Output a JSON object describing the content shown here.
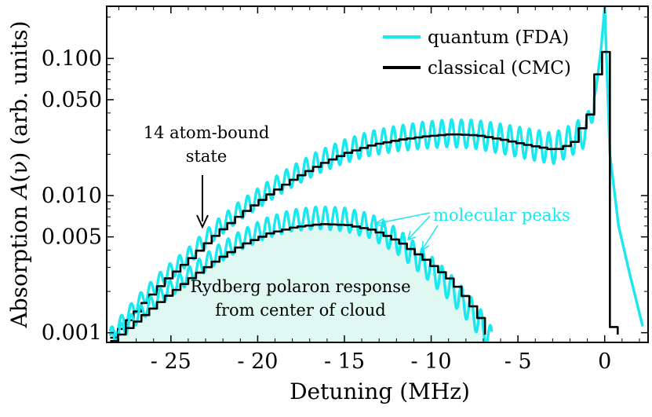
{
  "chart_data": {
    "type": "line",
    "title": "",
    "xlabel": "Detuning (MHz)",
    "ylabel_prefix": "Absorption ",
    "ylabel_symbol": "A",
    "ylabel_suffix": "(ν) (arb. units)",
    "xscale": "linear",
    "yscale": "log",
    "xlim": [
      -28.7,
      2.5
    ],
    "ylim": [
      0.00085,
      0.24
    ],
    "xticks": [
      -25,
      -20,
      -15,
      -10,
      -5,
      0
    ],
    "xtick_labels": [
      "- 25",
      "- 20",
      "- 15",
      "- 10",
      "- 5",
      "0"
    ],
    "yticks": [
      0.001,
      0.005,
      0.01,
      0.05,
      0.1
    ],
    "ytick_labels": [
      "0.001",
      "0.005",
      "0.010",
      "0.050",
      "0.100"
    ],
    "colors": {
      "quantum": "#19e8ee",
      "classical": "#000000",
      "fill": "#dff8f1",
      "annotation_cyan": "#19e8ee"
    },
    "series": [
      {
        "name": "quantum (FDA)",
        "component": "full-cloud",
        "x": [
          -28.5,
          -27,
          -25.5,
          -24,
          -22.5,
          -21,
          -19.5,
          -18,
          -16.5,
          -15,
          -13.5,
          -12,
          -10.5,
          -9,
          -7.5,
          -6,
          -4.5,
          -3,
          -2,
          -1,
          -0.5,
          -0.2,
          0,
          0.3,
          0.8,
          1.5,
          2.2
        ],
        "y": [
          0.00095,
          0.0016,
          0.0025,
          0.0036,
          0.0055,
          0.0078,
          0.0105,
          0.0138,
          0.0175,
          0.021,
          0.024,
          0.026,
          0.0275,
          0.0285,
          0.028,
          0.026,
          0.024,
          0.022,
          0.025,
          0.03,
          0.06,
          0.12,
          0.24,
          0.02,
          0.006,
          0.0025,
          0.0011
        ]
      },
      {
        "name": "classical (CMC)",
        "component": "full-cloud",
        "x": [
          -28.5,
          -27,
          -25.5,
          -24,
          -22.5,
          -21,
          -19.5,
          -18,
          -16.5,
          -15,
          -13.5,
          -12,
          -10.5,
          -9,
          -7.5,
          -6,
          -4.5,
          -3,
          -2,
          -1,
          -0.5,
          -0.1,
          0.3,
          0.5,
          0.9
        ],
        "y": [
          0.00092,
          0.0015,
          0.0024,
          0.0035,
          0.0053,
          0.0075,
          0.0102,
          0.0134,
          0.017,
          0.0205,
          0.0235,
          0.0255,
          0.027,
          0.028,
          0.0275,
          0.0255,
          0.0232,
          0.0215,
          0.024,
          0.04,
          0.09,
          0.115,
          0.0011,
          0.0011,
          0.0009
        ]
      },
      {
        "name": "quantum (FDA)",
        "component": "center-of-cloud",
        "x": [
          -28.5,
          -27,
          -25.5,
          -24,
          -22.5,
          -21,
          -19.5,
          -18,
          -16.5,
          -15,
          -13.5,
          -12,
          -10.5,
          -9,
          -8,
          -7,
          -6.5
        ],
        "y": [
          0.00088,
          0.0013,
          0.0019,
          0.0026,
          0.0036,
          0.0047,
          0.0058,
          0.0066,
          0.0069,
          0.0067,
          0.006,
          0.0047,
          0.0033,
          0.0022,
          0.0016,
          0.0011,
          0.00085
        ]
      },
      {
        "name": "classical (CMC)",
        "component": "center-of-cloud",
        "x": [
          -28.5,
          -27,
          -25.5,
          -24,
          -22.5,
          -21,
          -19.5,
          -18,
          -16.5,
          -15,
          -13.5,
          -12,
          -10.5,
          -9,
          -8,
          -7,
          -6.8
        ],
        "y": [
          0.00087,
          0.00125,
          0.0018,
          0.0025,
          0.0034,
          0.0044,
          0.0053,
          0.0059,
          0.0062,
          0.0061,
          0.0056,
          0.0046,
          0.0034,
          0.0024,
          0.0017,
          0.0011,
          0.00085
        ]
      }
    ],
    "legend": {
      "position": "top-right",
      "entries": [
        {
          "label": "quantum (FDA)",
          "color": "#19e8ee"
        },
        {
          "label": "classical (CMC)",
          "color": "#000000"
        }
      ]
    },
    "annotations": {
      "bound_state_line1": "14 atom-bound",
      "bound_state_line2": "state",
      "molecular_peaks": "molecular peaks",
      "polaron_line1": "Rydberg polaron response",
      "polaron_line2": "from center of cloud"
    }
  }
}
